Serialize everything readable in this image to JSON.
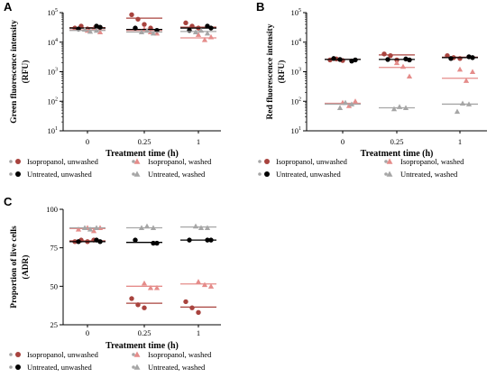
{
  "colors": {
    "isopropanol_unwashed": "#a8433e",
    "isopropanol_washed": "#e58c8a",
    "untreated_unwashed": "#000000",
    "untreated_washed": "#a6a6a6"
  },
  "chart_data": [
    {
      "id": "A",
      "type": "scatter",
      "panel_label": "A",
      "ylabel": "Green fluorescence intensity",
      "ylabel_unit": "(RFU)",
      "xlabel": "Treatment time (h)",
      "categories": [
        "0",
        "0.25",
        "1"
      ],
      "y_scale": "log",
      "ylim": [
        10,
        100000
      ],
      "y_ticks": [
        {
          "v": 10,
          "base": "10",
          "exp": "1"
        },
        {
          "v": 100,
          "base": "10",
          "exp": "2"
        },
        {
          "v": 1000,
          "base": "10",
          "exp": "3"
        },
        {
          "v": 10000,
          "base": "10",
          "exp": "4"
        },
        {
          "v": 100000,
          "base": "10",
          "exp": "5"
        }
      ],
      "series": [
        {
          "name": "Isopropanol, unwashed",
          "color": "#a8433e",
          "marker": "circle",
          "points": [
            [
              0,
              30000
            ],
            [
              0,
              35000
            ],
            [
              0,
              28000
            ],
            [
              1,
              85000
            ],
            [
              1,
              60000
            ],
            [
              1,
              40000
            ],
            [
              1,
              30000
            ],
            [
              2,
              45000
            ],
            [
              2,
              35000
            ],
            [
              2,
              30000
            ]
          ],
          "means": [
            31000,
            65000,
            32000
          ]
        },
        {
          "name": "Isopropanol, washed",
          "color": "#e58c8a",
          "marker": "triangle",
          "points": [
            [
              0,
              25000
            ],
            [
              0,
              30000
            ],
            [
              0,
              22000
            ],
            [
              1,
              28000
            ],
            [
              1,
              22000
            ],
            [
              1,
              20000
            ],
            [
              2,
              18000
            ],
            [
              2,
              12000
            ],
            [
              2,
              15000
            ]
          ],
          "means": [
            26000,
            25000,
            14000
          ]
        },
        {
          "name": "Untreated, unwashed",
          "color": "#000000",
          "marker": "circle",
          "points": [
            [
              0,
              32000
            ],
            [
              0,
              28000
            ],
            [
              0,
              35000
            ],
            [
              1,
              25000
            ],
            [
              1,
              30000
            ],
            [
              2,
              30000
            ],
            [
              2,
              25000
            ],
            [
              2,
              35000
            ]
          ],
          "means": [
            30000,
            27000,
            30000
          ]
        },
        {
          "name": "Untreated, washed",
          "color": "#a6a6a6",
          "marker": "triangle",
          "points": [
            [
              0,
              25000
            ],
            [
              0,
              27000
            ],
            [
              0,
              23000
            ],
            [
              1,
              20000
            ],
            [
              1,
              22000
            ],
            [
              1,
              25000
            ],
            [
              2,
              20000
            ],
            [
              2,
              22000
            ],
            [
              2,
              25000
            ]
          ],
          "means": [
            25000,
            22000,
            23000
          ]
        }
      ]
    },
    {
      "id": "B",
      "type": "scatter",
      "panel_label": "B",
      "ylabel": "Red fluorescence intensity",
      "ylabel_unit": "(RFU)",
      "xlabel": "Treatment time (h)",
      "categories": [
        "0",
        "0.25",
        "1"
      ],
      "y_scale": "log",
      "ylim": [
        10,
        100000
      ],
      "y_ticks": [
        {
          "v": 10,
          "base": "10",
          "exp": "1"
        },
        {
          "v": 100,
          "base": "10",
          "exp": "2"
        },
        {
          "v": 1000,
          "base": "10",
          "exp": "3"
        },
        {
          "v": 10000,
          "base": "10",
          "exp": "4"
        },
        {
          "v": 100000,
          "base": "10",
          "exp": "5"
        }
      ],
      "series": [
        {
          "name": "Isopropanol, unwashed",
          "color": "#a8433e",
          "marker": "circle",
          "points": [
            [
              0,
              2500
            ],
            [
              0,
              2700
            ],
            [
              0,
              2400
            ],
            [
              1,
              4000
            ],
            [
              1,
              3500
            ],
            [
              1,
              2500
            ],
            [
              2,
              3500
            ],
            [
              2,
              3000
            ],
            [
              2,
              2800
            ]
          ],
          "means": [
            2600,
            3700,
            3100
          ]
        },
        {
          "name": "Isopropanol, washed",
          "color": "#e58c8a",
          "marker": "triangle",
          "points": [
            [
              0,
              90
            ],
            [
              0,
              70
            ],
            [
              0,
              100
            ],
            [
              1,
              2000
            ],
            [
              1,
              1500
            ],
            [
              1,
              700
            ],
            [
              2,
              1200
            ],
            [
              2,
              500
            ],
            [
              2,
              1000
            ]
          ],
          "means": [
            85,
            1400,
            600
          ]
        },
        {
          "name": "Untreated, unwashed",
          "color": "#000000",
          "marker": "circle",
          "points": [
            [
              0,
              2500
            ],
            [
              0,
              2800
            ],
            [
              0,
              2300
            ],
            [
              0,
              2600
            ],
            [
              1,
              2500
            ],
            [
              1,
              2600
            ],
            [
              1,
              2700
            ],
            [
              2,
              3000
            ],
            [
              2,
              2800
            ],
            [
              2,
              3200
            ]
          ],
          "means": [
            2600,
            2600,
            3000
          ]
        },
        {
          "name": "Untreated, washed",
          "color": "#a6a6a6",
          "marker": "triangle",
          "points": [
            [
              0,
              80
            ],
            [
              0,
              60
            ],
            [
              0,
              90
            ],
            [
              1,
              60
            ],
            [
              1,
              55
            ],
            [
              1,
              65
            ],
            [
              2,
              80
            ],
            [
              2,
              45
            ],
            [
              2,
              85
            ]
          ],
          "means": [
            80,
            60,
            80
          ]
        }
      ]
    },
    {
      "id": "C",
      "type": "scatter",
      "panel_label": "C",
      "ylabel": "Proportion of live cells",
      "ylabel_unit": "(ADR)",
      "xlabel": "Treatment time (h)",
      "categories": [
        "0",
        "0.25",
        "1"
      ],
      "y_scale": "linear",
      "ylim": [
        25,
        100
      ],
      "y_ticks": [
        {
          "v": 25,
          "label": "25"
        },
        {
          "v": 50,
          "label": "50"
        },
        {
          "v": 75,
          "label": "75"
        },
        {
          "v": 100,
          "label": "100"
        }
      ],
      "series": [
        {
          "name": "Isopropanol, unwashed",
          "color": "#a8433e",
          "marker": "circle",
          "points": [
            [
              0,
              79
            ],
            [
              0,
              80
            ],
            [
              0,
              79
            ],
            [
              0,
              80
            ],
            [
              1,
              42
            ],
            [
              1,
              38
            ],
            [
              1,
              36
            ],
            [
              2,
              40
            ],
            [
              2,
              36
            ],
            [
              2,
              33
            ]
          ],
          "means": [
            79.5,
            39,
            36.5
          ]
        },
        {
          "name": "Isopropanol, washed",
          "color": "#e58c8a",
          "marker": "triangle",
          "points": [
            [
              0,
              88
            ],
            [
              0,
              86
            ],
            [
              0,
              88
            ],
            [
              0,
              87
            ],
            [
              1,
              52
            ],
            [
              1,
              49
            ],
            [
              1,
              49
            ],
            [
              2,
              53
            ],
            [
              2,
              51
            ],
            [
              2,
              50
            ]
          ],
          "means": [
            87.5,
            50,
            51.5
          ]
        },
        {
          "name": "Untreated, unwashed",
          "color": "#000000",
          "marker": "circle",
          "points": [
            [
              0,
              79
            ],
            [
              0,
              79
            ],
            [
              0,
              80
            ],
            [
              1,
              78
            ],
            [
              1,
              80
            ],
            [
              1,
              78
            ],
            [
              2,
              80
            ],
            [
              2,
              80
            ],
            [
              2,
              80
            ]
          ],
          "means": [
            79,
            78.5,
            80
          ]
        },
        {
          "name": "Untreated, washed",
          "color": "#a6a6a6",
          "marker": "triangle",
          "points": [
            [
              0,
              88
            ],
            [
              0,
              88
            ],
            [
              0,
              87
            ],
            [
              1,
              88
            ],
            [
              1,
              88
            ],
            [
              1,
              89
            ],
            [
              2,
              88
            ],
            [
              2,
              89
            ],
            [
              2,
              88
            ]
          ],
          "means": [
            88,
            88,
            88.5
          ]
        }
      ]
    }
  ],
  "legend": {
    "items": [
      {
        "label": "Isopropanol, unwashed",
        "color": "#a8433e",
        "marker": "circle"
      },
      {
        "label": "Isopropanol, washed",
        "color": "#e58c8a",
        "marker": "triangle"
      },
      {
        "label": "Untreated, unwashed",
        "color": "#000000",
        "marker": "circle"
      },
      {
        "label": "Untreated, washed",
        "color": "#a6a6a6",
        "marker": "triangle"
      }
    ]
  }
}
